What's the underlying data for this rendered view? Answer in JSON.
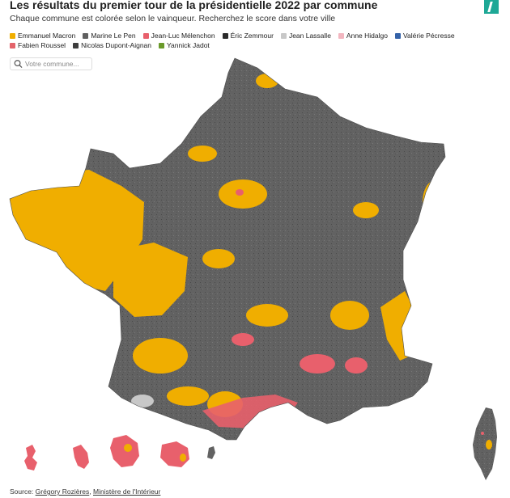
{
  "title": "Les résultats du premier tour de la présidentielle 2022 par commune",
  "subtitle": "Chaque commune est colorée selon le vainqueur. Recherchez le score dans votre ville",
  "legend": [
    {
      "label": "Emmanuel Macron",
      "color": "#f0ae00"
    },
    {
      "label": "Marine Le Pen",
      "color": "#606060"
    },
    {
      "label": "Jean-Luc Mélenchon",
      "color": "#e8606c"
    },
    {
      "label": "Éric Zemmour",
      "color": "#2b2b2b"
    },
    {
      "label": "Jean Lassalle",
      "color": "#c8c8c8"
    },
    {
      "label": "Anne Hidalgo",
      "color": "#f2b6c0"
    },
    {
      "label": "Valérie Pécresse",
      "color": "#3462a8"
    },
    {
      "label": "Fabien Roussel",
      "color": "#e3636a"
    },
    {
      "label": "Nicolas Dupont-Aignan",
      "color": "#3e3e3e"
    },
    {
      "label": "Yannick Jadot",
      "color": "#6a9a2a"
    }
  ],
  "search": {
    "placeholder": "Votre commune..."
  },
  "icons": {
    "search": "search-icon",
    "logo": "huffpost-logo"
  },
  "source": {
    "prefix": "Source: ",
    "link1": "Grégory Rozières",
    "separator": ", ",
    "link2": "Ministère de l'Intérieur"
  }
}
